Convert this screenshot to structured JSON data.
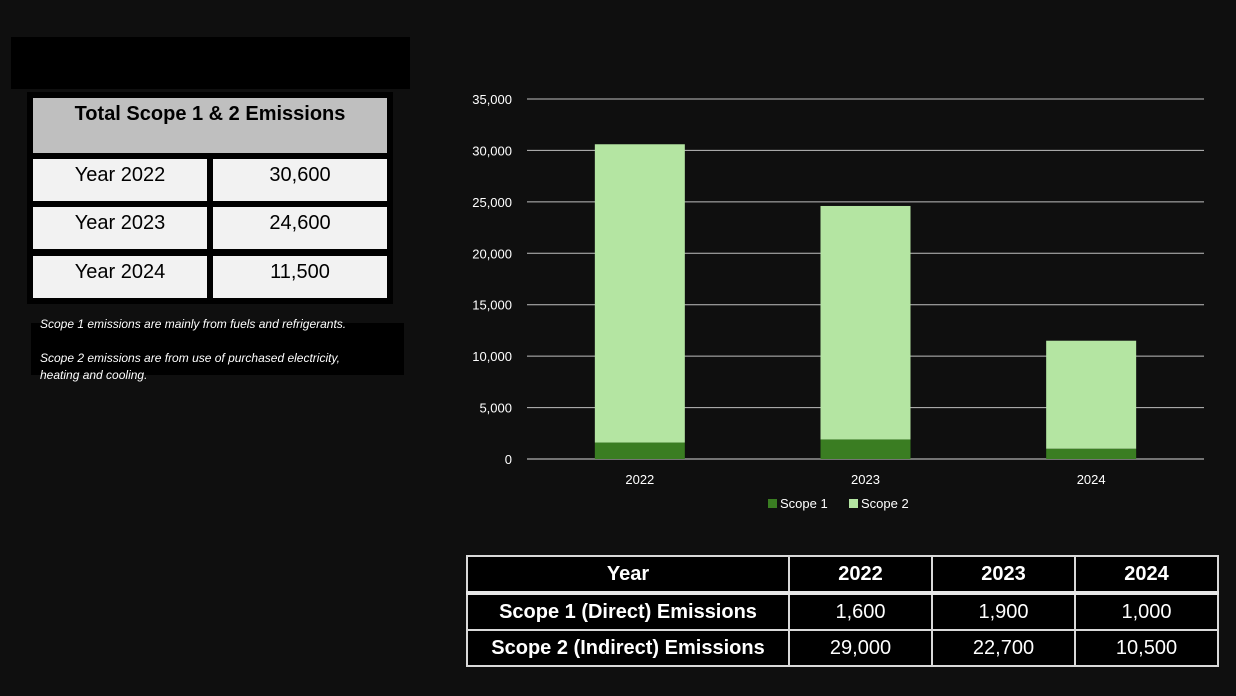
{
  "summary": {
    "title": "Total Scope 1 & 2 Emissions",
    "rows": [
      {
        "label": "Year 2022",
        "value": "30,600"
      },
      {
        "label": "Year 2023",
        "value": "24,600"
      },
      {
        "label": "Year 2024",
        "value": "11,500"
      }
    ]
  },
  "notes": {
    "line1": "Scope 1 emissions are mainly from fuels and refrigerants.",
    "line2": "Scope 2 emissions are from use of purchased electricity,",
    "line3": "heating and cooling."
  },
  "chart_data": {
    "type": "bar",
    "stacked": true,
    "categories": [
      "2022",
      "2023",
      "2024"
    ],
    "series": [
      {
        "name": "Scope 1",
        "values": [
          1600,
          1900,
          1000
        ],
        "color": "#3a7d22"
      },
      {
        "name": "Scope 2",
        "values": [
          29000,
          22700,
          10500
        ],
        "color": "#b4e5a2"
      }
    ],
    "ylim": [
      0,
      35000
    ],
    "yticks": [
      "0",
      "5,000",
      "10,000",
      "15,000",
      "20,000",
      "25,000",
      "30,000",
      "35,000"
    ],
    "grid": true,
    "legend": "bottom"
  },
  "table": {
    "header": [
      "Year",
      "2022",
      "2023",
      "2024"
    ],
    "rows": [
      [
        "Scope 1 (Direct) Emissions",
        "1,600",
        "1,900",
        "1,000"
      ],
      [
        "Scope 2 (Indirect) Emissions",
        "29,000",
        "22,700",
        "10,500"
      ]
    ]
  }
}
